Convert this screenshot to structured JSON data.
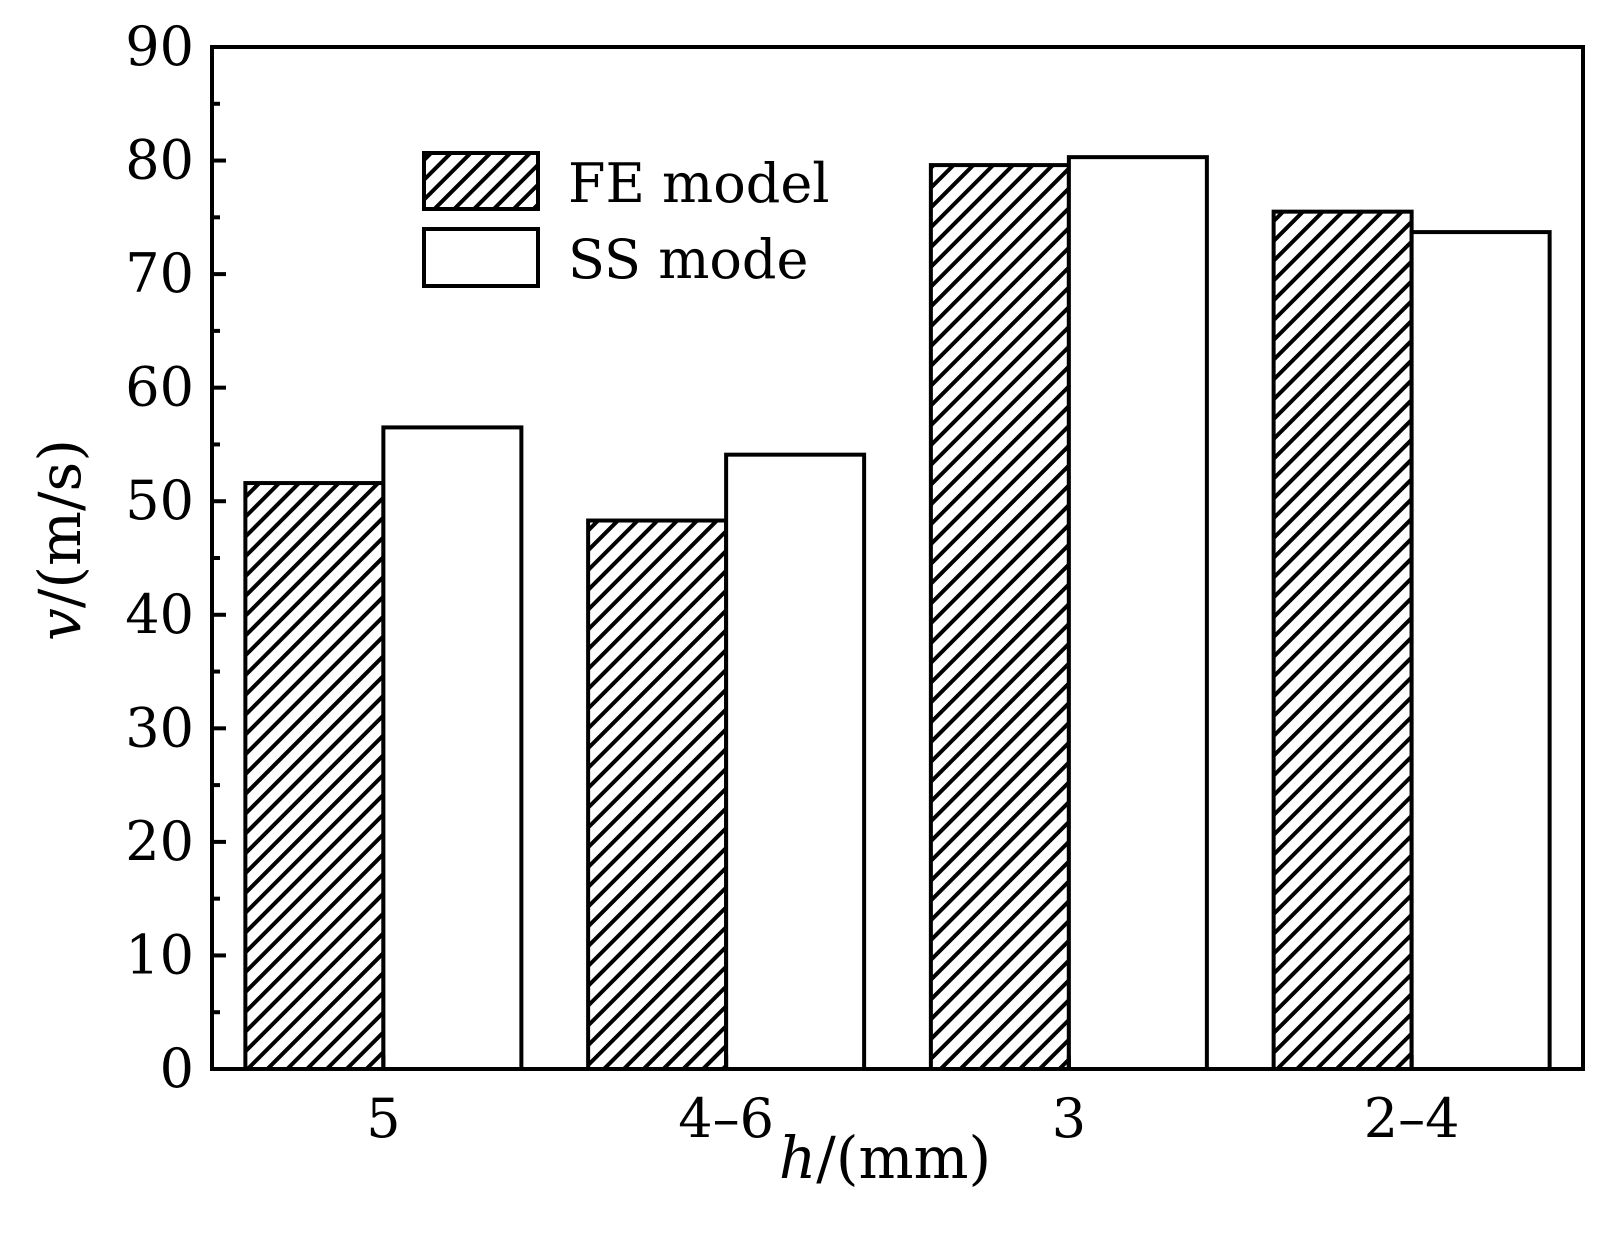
{
  "chart_data": {
    "type": "bar",
    "categories": [
      "5",
      "4–6",
      "3",
      "2–4"
    ],
    "series": [
      {
        "name": "FE model",
        "values": [
          51.6,
          48.3,
          79.6,
          75.5
        ],
        "pattern": "hatched"
      },
      {
        "name": "SS mode",
        "values": [
          56.5,
          54.1,
          80.3,
          73.7
        ],
        "pattern": "empty"
      }
    ],
    "xlabel": {
      "var": "h",
      "unit": "/(mm)"
    },
    "ylabel": {
      "var": "v",
      "unit": "/(m/s)"
    },
    "ylim": [
      0,
      90
    ],
    "yticks": [
      "0",
      "10",
      "20",
      "30",
      "40",
      "50",
      "60",
      "70",
      "80",
      "90"
    ],
    "grid": false,
    "legend_position": "top-left",
    "colors": {
      "stroke": "#000000",
      "fill": "#ffffff"
    }
  }
}
